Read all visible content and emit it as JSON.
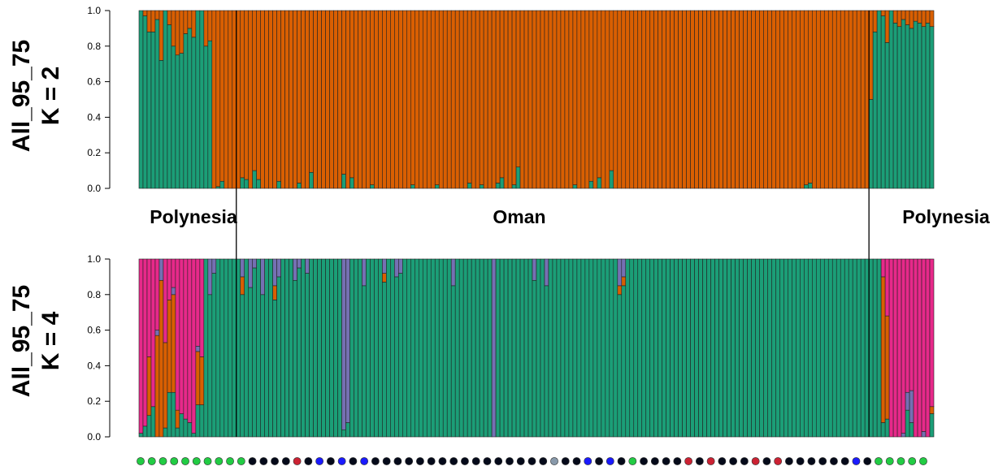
{
  "chart_data": [
    {
      "type": "bar",
      "stacked": true,
      "title_line1": "All_95_75",
      "title_line2": "K = 2",
      "ylim": [
        0,
        1
      ],
      "yticks": [
        "0.0",
        "0.2",
        "0.4",
        "0.6",
        "0.8",
        "1.0"
      ],
      "colors": [
        "#1b9e77",
        "#d95f02"
      ],
      "n_individuals": 196,
      "segments": [
        {
          "from": 0,
          "to": 24,
          "values": [
            1.0,
            0.97,
            0.88,
            0.88,
            0.95,
            0.72,
            1.0,
            0.92,
            0.8,
            0.75,
            0.76,
            0.87,
            0.9,
            0.85,
            1.0,
            1.0,
            0.8,
            0.83,
            0.0,
            0.01,
            0.04,
            0.0,
            0.0,
            0.0
          ]
        },
        {
          "from": 24,
          "to": 180,
          "values": [
            0.0,
            0.06,
            0.05,
            0.0,
            0.1,
            0.05,
            0.0,
            0.0,
            0.0,
            0.0,
            0.04,
            0.0,
            0.0,
            0.0,
            0.0,
            0.03,
            0.0,
            0.0,
            0.09,
            0.0,
            0.0,
            0.0,
            0.0,
            0.0,
            0.0,
            0.0,
            0.08,
            0.0,
            0.06,
            0.0,
            0.0,
            0.0,
            0.0,
            0.02,
            0.0,
            0.0,
            0.0,
            0.0,
            0.0,
            0.0,
            0.0,
            0.0,
            0.0,
            0.02,
            0.0,
            0.0,
            0.0,
            0.0,
            0.0,
            0.02,
            0.0,
            0.0,
            0.0,
            0.0,
            0.0,
            0.0,
            0.0,
            0.03,
            0.0,
            0.0,
            0.02,
            0.0,
            0.0,
            0.0,
            0.03,
            0.06,
            0.0,
            0.0,
            0.02,
            0.12,
            0.0,
            0.0,
            0.0,
            0.0,
            0.0,
            0.0,
            0.0,
            0.0,
            0.0,
            0.0,
            0.0,
            0.0,
            0.0,
            0.02,
            0.0,
            0.0,
            0.0,
            0.04,
            0.0,
            0.06,
            0.0,
            0.0,
            0.1,
            0.0,
            0.0,
            0.0,
            0.0,
            0.0,
            0.0,
            0.0,
            0.0,
            0.0,
            0.0,
            0.0,
            0.0,
            0.0,
            0.0,
            0.0,
            0.0,
            0.0,
            0.0,
            0.0,
            0.0,
            0.0,
            0.0,
            0.0,
            0.0,
            0.0,
            0.0,
            0.0,
            0.0,
            0.0,
            0.0,
            0.0,
            0.0,
            0.0,
            0.0,
            0.0,
            0.0,
            0.0,
            0.0,
            0.0,
            0.0,
            0.0,
            0.0,
            0.0,
            0.0,
            0.0,
            0.0,
            0.0,
            0.02,
            0.03,
            0.0,
            0.0,
            0.0,
            0.0,
            0.0,
            0.0,
            0.0,
            0.0,
            0.0,
            0.0,
            0.0,
            0.0
          ]
        },
        {
          "from": 180,
          "to": 196,
          "values": [
            0.5,
            0.88,
            1.0,
            0.97,
            0.82,
            1.0,
            0.93,
            0.91,
            0.95,
            0.92,
            0.9,
            0.94,
            0.93,
            0.91,
            0.93,
            0.91
          ]
        }
      ],
      "component_shown": "green fraction per individual (remainder orange)"
    },
    {
      "type": "bar",
      "stacked": true,
      "title_line1": "All_95_75",
      "title_line2": "K = 4",
      "ylim": [
        0,
        1
      ],
      "yticks": [
        "0.0",
        "0.2",
        "0.4",
        "0.6",
        "0.8",
        "1.0"
      ],
      "colors": [
        "#1b9e77",
        "#d95f02",
        "#7570b3",
        "#e7298a"
      ],
      "polynesia_left": [
        [
          0.02,
          0.0,
          0.0,
          0.98
        ],
        [
          0.06,
          0.0,
          0.0,
          0.94
        ],
        [
          0.12,
          0.33,
          0.0,
          0.55
        ],
        [
          0.17,
          0.0,
          0.0,
          0.83
        ],
        [
          0.0,
          0.57,
          0.03,
          0.4
        ],
        [
          0.0,
          0.88,
          0.12,
          0.0
        ],
        [
          0.05,
          0.48,
          0.0,
          0.47
        ],
        [
          0.25,
          0.52,
          0.0,
          0.23
        ],
        [
          0.25,
          0.55,
          0.04,
          0.16
        ],
        [
          0.05,
          0.1,
          0.0,
          0.85
        ],
        [
          0.13,
          0.0,
          0.0,
          0.87
        ],
        [
          0.1,
          0.0,
          0.0,
          0.9
        ],
        [
          0.08,
          0.0,
          0.0,
          0.92
        ],
        [
          0.02,
          0.0,
          0.0,
          0.98
        ],
        [
          0.18,
          0.3,
          0.03,
          0.49
        ],
        [
          0.18,
          0.27,
          0.0,
          0.55
        ]
      ],
      "oman_purple_fraction": [
        0.0,
        0.2,
        0.08,
        0.0,
        0.0,
        0.0,
        0.0,
        0.0,
        0.0,
        0.0,
        0.0,
        0.16,
        0.05,
        0.0,
        0.2,
        0.0,
        0.0,
        0.0,
        0.1,
        0.0,
        0.0,
        0.0,
        0.12,
        0.05,
        0.0,
        0.08,
        0.0,
        0.0,
        0.0,
        0.0,
        0.0,
        0.0,
        0.0,
        0.0,
        0.96,
        0.92,
        0.0,
        0.0,
        0.0,
        0.15,
        0.0,
        0.0,
        0.0,
        0.0,
        0.0,
        0.0,
        0.0,
        0.1,
        0.08,
        0.0,
        0.0,
        0.0,
        0.0,
        0.0,
        0.0,
        0.0,
        0.0,
        0.0,
        0.0,
        0.0,
        0.0,
        0.15,
        0.0,
        0.0,
        0.0,
        0.0,
        0.0,
        0.0,
        0.0,
        0.0,
        0.0,
        1.0,
        0.0,
        0.0,
        0.0,
        0.0,
        0.0,
        0.0,
        0.0,
        0.0,
        0.0,
        0.12,
        0.0,
        0.0,
        0.15,
        0.0,
        0.0,
        0.0,
        0.0,
        0.0,
        0.0,
        0.0,
        0.0,
        0.0,
        0.0,
        0.0,
        0.0,
        0.0,
        0.0,
        0.0,
        0.0,
        0.0,
        0.0,
        0.0,
        0.0,
        0.0,
        0.0,
        0.0,
        0.0,
        0.0,
        0.0,
        0.0,
        0.0,
        0.0,
        0.0,
        0.0,
        0.0,
        0.0,
        0.0,
        0.0,
        0.0,
        0.0,
        0.0,
        0.0,
        0.0,
        0.0,
        0.0,
        0.0,
        0.0,
        0.0,
        0.0,
        0.0,
        0.0,
        0.0,
        0.0,
        0.0,
        0.0,
        0.0,
        0.0,
        0.0,
        0.0,
        0.0,
        0.0,
        0.0,
        0.0,
        0.0,
        0.0,
        0.0,
        0.0,
        0.0,
        0.0,
        0.0,
        0.0,
        0.0,
        0.0,
        0.0,
        0.0,
        0.0
      ],
      "oman_highlights": {
        "25": [
          0.0,
          0.1,
          0.1,
          0.0
        ],
        "33": [
          0.0,
          0.08,
          0.15,
          0.0
        ],
        "60": [
          0.0,
          0.05,
          0.08,
          0.0
        ],
        "118": [
          0.0,
          0.05,
          0.15,
          0.0
        ],
        "119": [
          0.0,
          0.05,
          0.1,
          0.0
        ]
      },
      "polynesia_right": [
        [
          0.08,
          0.82,
          0.0,
          0.1
        ],
        [
          0.1,
          0.58,
          0.0,
          0.32
        ],
        [
          0.0,
          0.0,
          0.0,
          1.0
        ],
        [
          0.0,
          0.0,
          0.0,
          1.0
        ],
        [
          0.0,
          0.0,
          0.0,
          1.0
        ],
        [
          0.0,
          0.0,
          0.02,
          0.98
        ],
        [
          0.15,
          0.0,
          0.1,
          0.75
        ],
        [
          0.08,
          0.0,
          0.18,
          0.74
        ],
        [
          0.0,
          0.0,
          0.0,
          1.0
        ],
        [
          0.0,
          0.0,
          0.0,
          1.0
        ],
        [
          0.0,
          0.0,
          0.03,
          0.97
        ],
        [
          0.0,
          0.0,
          0.0,
          1.0
        ],
        [
          0.13,
          0.04,
          0.0,
          0.83
        ]
      ]
    }
  ],
  "region_labels": {
    "left": "Polynesia",
    "middle": "Oman",
    "right": "Polynesia"
  },
  "boundaries": [
    24,
    180
  ],
  "sample_markers": {
    "colors": {
      "green": "#22cc44",
      "black": "#050a1a",
      "red": "#cc2233",
      "blue": "#1a1aff",
      "grey": "#8899aa"
    },
    "sequence": [
      "green",
      "green",
      "green",
      "green",
      "green",
      "green",
      "green",
      "green",
      "green",
      "green",
      "black",
      "black",
      "black",
      "black",
      "red",
      "black",
      "blue",
      "black",
      "blue",
      "black",
      "blue",
      "black",
      "black",
      "black",
      "black",
      "black",
      "black",
      "black",
      "black",
      "black",
      "black",
      "black",
      "black",
      "black",
      "black",
      "black",
      "black",
      "grey",
      "black",
      "black",
      "blue",
      "black",
      "blue",
      "black",
      "green",
      "black",
      "black",
      "black",
      "black",
      "red",
      "black",
      "red",
      "black",
      "black",
      "black",
      "red",
      "black",
      "red",
      "black",
      "black",
      "black",
      "black",
      "black",
      "black",
      "blue",
      "black",
      "green",
      "green",
      "green",
      "green",
      "green"
    ]
  }
}
